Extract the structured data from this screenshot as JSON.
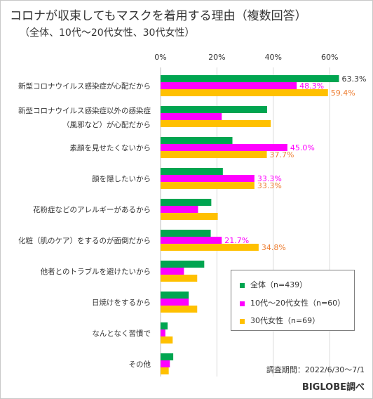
{
  "chart_data": {
    "type": "bar",
    "orientation": "horizontal",
    "title": "コロナが収束してもマスクを着用する理由（複数回答）",
    "subtitle": "（全体、10代～20代女性、30代女性）",
    "categories": [
      "新型コロナウイルス感染症が心配だから",
      "新型コロナウイルス感染症以外の感染症（風邪など）が心配だから",
      "素顔を見せたくないから",
      "顔を隠したいから",
      "花粉症などのアレルギーがあるから",
      "化粧（肌のケア）をするのが面倒だから",
      "他者とのトラブルを避けたいから",
      "日焼けをするから",
      "なんとなく習慣で",
      "その他"
    ],
    "category_lines": [
      [
        "新型コロナウイルス感染症が心配だから"
      ],
      [
        "新型コロナウイルス感染症以外の感染症",
        "（風邪など）が心配だから"
      ],
      [
        "素顔を見せたくないから"
      ],
      [
        "顔を隠したいから"
      ],
      [
        "花粉症などのアレルギーがあるから"
      ],
      [
        "化粧（肌のケア）をするのが面倒だから"
      ],
      [
        "他者とのトラブルを避けたいから"
      ],
      [
        "日焼けをするから"
      ],
      [
        "なんとなく習慣で"
      ],
      [
        "その他"
      ]
    ],
    "series": [
      {
        "name": "全体（n=439）",
        "color": "#00a550",
        "values": [
          63.3,
          37.8,
          25.5,
          22.1,
          18.0,
          17.8,
          15.5,
          10.0,
          2.5,
          4.5
        ],
        "labels": [
          "63.3%",
          "",
          "",
          "",
          "",
          "",
          "",
          "",
          "",
          ""
        ]
      },
      {
        "name": "10代～20代女性（n=60）",
        "color": "#ff00ff",
        "values": [
          48.3,
          21.7,
          45.0,
          33.3,
          13.3,
          21.7,
          8.3,
          10.0,
          1.7,
          3.3
        ],
        "labels": [
          "48.3%",
          "",
          "45.0%",
          "33.3%",
          "",
          "21.7%",
          "",
          "",
          "",
          ""
        ]
      },
      {
        "name": "30代女性（n=69）",
        "color": "#ffc000",
        "values": [
          59.4,
          39.1,
          37.7,
          33.3,
          20.3,
          34.8,
          13.0,
          13.0,
          4.3,
          2.9
        ],
        "labels": [
          "59.4%",
          "",
          "37.7%",
          "33.3%",
          "",
          "34.8%",
          "",
          "",
          "",
          ""
        ],
        "label_color": "#ed7d31"
      }
    ],
    "x_ticks": [
      0,
      20,
      40,
      60
    ],
    "x_tick_labels": [
      "0%",
      "20%",
      "40%",
      "60%"
    ],
    "xlim": [
      0,
      70
    ],
    "grid": true,
    "legend_position": "bottom-right"
  },
  "note": "調査期間：2022/6/30～7/1",
  "source": "BIGLOBE調べ"
}
